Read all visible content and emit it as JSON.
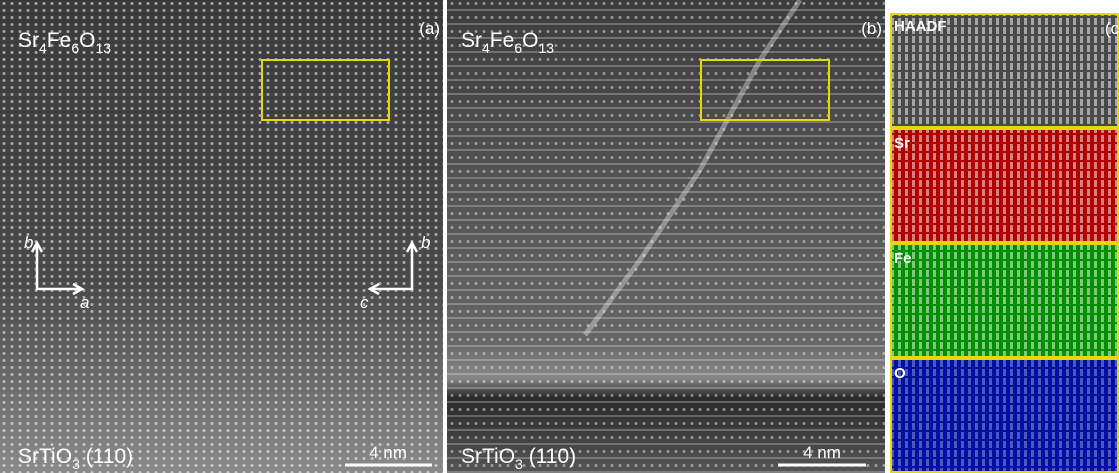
{
  "panels": [
    {
      "label": "(a)",
      "top_formula": [
        "Sr",
        "4",
        "Fe",
        "6",
        "O",
        "13"
      ],
      "bottom_formula": [
        "SrTiO",
        "3",
        " (110)"
      ],
      "scale_bar": "4 nm",
      "axes": {
        "vertical": "b",
        "horizontal": "a"
      },
      "axes_2": {
        "vertical": "b",
        "horizontal": "c"
      }
    },
    {
      "label": "(b)",
      "top_formula": [
        "Sr",
        "4",
        "Fe",
        "6",
        "O",
        "13"
      ],
      "bottom_formula": [
        "SrTiO",
        "3",
        " (110)"
      ],
      "scale_bar": "4 nm"
    },
    {
      "label": "(c",
      "maps": [
        "HAADF",
        "Sr",
        "Fe",
        "O"
      ]
    }
  ]
}
